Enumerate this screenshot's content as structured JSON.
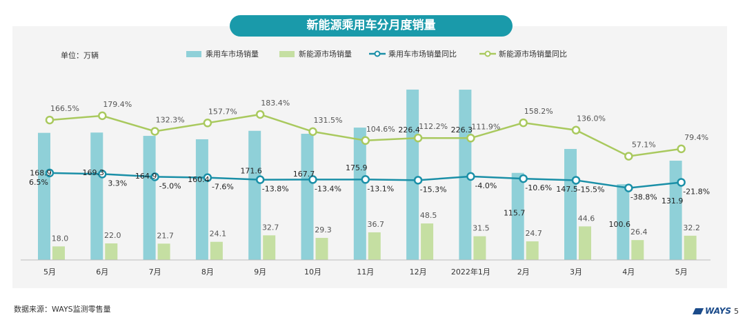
{
  "title": "新能源乘用车分月度销量",
  "unit_label": "单位：万辆",
  "legend": [
    {
      "label": "乘用车市场销量",
      "kind": "bar",
      "color": "#8fd0d8"
    },
    {
      "label": "新能源市场销量",
      "kind": "bar",
      "color": "#c5dfa2"
    },
    {
      "label": "乘用车市场销量同比",
      "kind": "line",
      "color": "#1a8fa7"
    },
    {
      "label": "新能源市场销量同比",
      "kind": "line",
      "color": "#a9c95e"
    }
  ],
  "chart_data": {
    "type": "bar",
    "categories": [
      "5月",
      "6月",
      "7月",
      "8月",
      "9月",
      "10月",
      "11月",
      "12月",
      "2022年1月",
      "2月",
      "3月",
      "4月",
      "5月"
    ],
    "series": [
      {
        "name": "乘用车市场销量",
        "kind": "bar",
        "values": [
          168.9,
          169.3,
          164.9,
          160.4,
          171.6,
          167.7,
          175.9,
          226.4,
          226.3,
          115.7,
          147.5,
          100.6,
          131.9
        ],
        "labels": [
          "168.9",
          "169.3",
          "164.9",
          "160.4",
          "171.6",
          "167.7",
          "175.9",
          "226.4",
          "226.3",
          "115.7",
          "147.5",
          "100.6",
          "131.9"
        ]
      },
      {
        "name": "新能源市场销量",
        "kind": "bar",
        "values": [
          18.0,
          22.0,
          21.7,
          24.1,
          32.7,
          29.3,
          36.7,
          48.5,
          31.5,
          24.7,
          44.6,
          26.4,
          32.2
        ],
        "labels": [
          "18.0",
          "22.0",
          "21.7",
          "24.1",
          "32.7",
          "29.3",
          "36.7",
          "48.5",
          "31.5",
          "24.7",
          "44.6",
          "26.4",
          "32.2"
        ]
      },
      {
        "name": "乘用车市场销量同比",
        "kind": "line",
        "values": [
          6.5,
          3.3,
          -5.0,
          -7.6,
          -13.8,
          -13.4,
          -13.1,
          -15.3,
          -4.0,
          -10.6,
          -15.5,
          -38.8,
          -21.8
        ],
        "labels": [
          "6.5%",
          "3.3%",
          "-5.0%",
          "-7.6%",
          "-13.8%",
          "-13.4%",
          "-13.1%",
          "-15.3%",
          "-4.0%",
          "-10.6%",
          "-15.5%",
          "-38.8%",
          "-21.8%"
        ]
      },
      {
        "name": "新能源市场销量同比",
        "kind": "line",
        "values": [
          166.5,
          179.4,
          132.3,
          157.7,
          183.4,
          131.5,
          104.6,
          112.2,
          111.9,
          158.2,
          136.0,
          57.1,
          79.4
        ],
        "labels": [
          "166.5%",
          "179.4%",
          "132.3%",
          "157.7%",
          "183.4%",
          "131.5%",
          "104.6%",
          "112.2%",
          "111.9%",
          "158.2%",
          "136.0%",
          "57.1%",
          "79.4%"
        ]
      }
    ],
    "bar_ylim": [
      0,
      230
    ],
    "pct_ylim": [
      -200,
      300
    ],
    "grid": false,
    "legend_position": "top"
  },
  "source_text": "数据来源：WAYS监测零售量",
  "logo_text": "WAYS",
  "page_number": "5"
}
